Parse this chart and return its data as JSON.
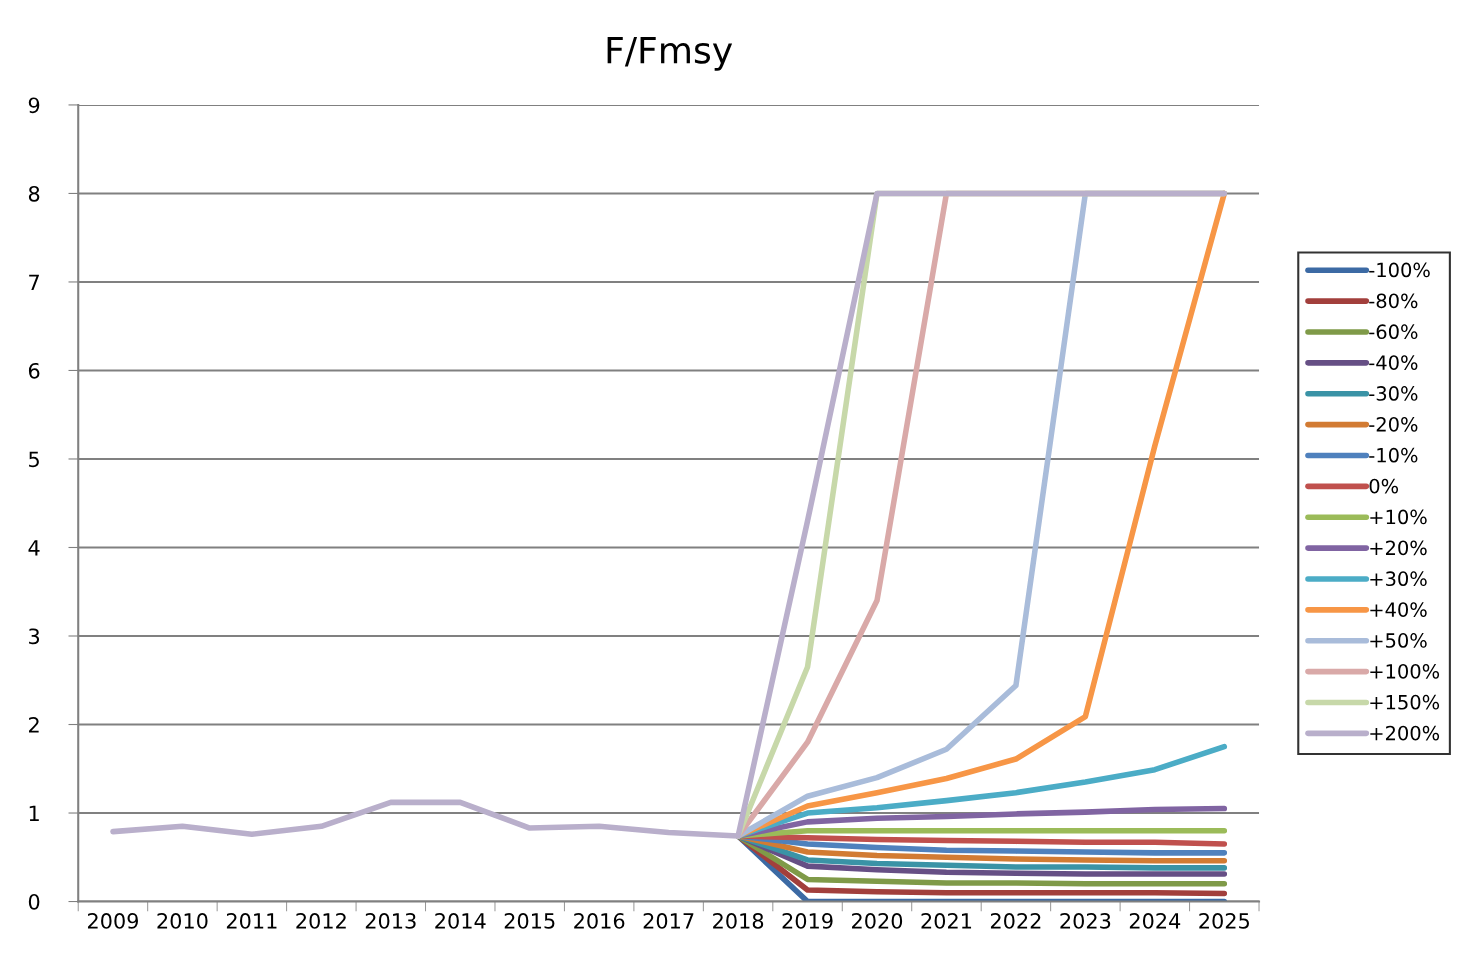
{
  "chart_data": {
    "type": "line",
    "title": "F/Fmsy",
    "categories": [
      "2009",
      "2010",
      "2011",
      "2012",
      "2013",
      "2014",
      "2015",
      "2016",
      "2017",
      "2018",
      "2019",
      "2020",
      "2021",
      "2022",
      "2023",
      "2024",
      "2025"
    ],
    "ylim": [
      0,
      9
    ],
    "yticks": [
      0,
      1,
      2,
      3,
      4,
      5,
      6,
      7,
      8,
      9
    ],
    "grid": "y",
    "legend": "right",
    "marker": "none",
    "line_style": "solid",
    "series": [
      {
        "name": "-100%",
        "color": "#3c6aa4",
        "values": [
          null,
          null,
          null,
          null,
          null,
          null,
          null,
          null,
          null,
          0.74,
          0,
          0,
          0,
          0,
          0,
          0,
          0
        ]
      },
      {
        "name": "-80%",
        "color": "#a23f3c",
        "values": [
          null,
          null,
          null,
          null,
          null,
          null,
          null,
          null,
          null,
          0.74,
          0.13,
          0.11,
          0.1,
          0.1,
          0.1,
          0.1,
          0.09
        ]
      },
      {
        "name": "-60%",
        "color": "#7f9a48",
        "values": [
          null,
          null,
          null,
          null,
          null,
          null,
          null,
          null,
          null,
          0.74,
          0.25,
          0.23,
          0.21,
          0.21,
          0.2,
          0.2,
          0.2
        ]
      },
      {
        "name": "-40%",
        "color": "#664f85",
        "values": [
          null,
          null,
          null,
          null,
          null,
          null,
          null,
          null,
          null,
          0.74,
          0.4,
          0.36,
          0.33,
          0.32,
          0.31,
          0.31,
          0.31
        ]
      },
      {
        "name": "-30%",
        "color": "#3a93a6",
        "values": [
          null,
          null,
          null,
          null,
          null,
          null,
          null,
          null,
          null,
          0.74,
          0.47,
          0.43,
          0.41,
          0.39,
          0.39,
          0.38,
          0.38
        ]
      },
      {
        "name": "-20%",
        "color": "#d27b33",
        "values": [
          null,
          null,
          null,
          null,
          null,
          null,
          null,
          null,
          null,
          0.74,
          0.56,
          0.52,
          0.5,
          0.48,
          0.47,
          0.46,
          0.46
        ]
      },
      {
        "name": "-10%",
        "color": "#4f81bd",
        "values": [
          null,
          null,
          null,
          null,
          null,
          null,
          null,
          null,
          null,
          0.74,
          0.65,
          0.61,
          0.58,
          0.57,
          0.56,
          0.55,
          0.55
        ]
      },
      {
        "name": "0%",
        "color": "#c0504d",
        "values": [
          null,
          null,
          null,
          null,
          null,
          null,
          null,
          null,
          null,
          0.74,
          0.72,
          0.7,
          0.69,
          0.68,
          0.67,
          0.67,
          0.65
        ]
      },
      {
        "name": "+10%",
        "color": "#9bbb59",
        "values": [
          null,
          null,
          null,
          null,
          null,
          null,
          null,
          null,
          null,
          0.74,
          0.8,
          0.8,
          0.8,
          0.8,
          0.8,
          0.8,
          0.8
        ]
      },
      {
        "name": "+20%",
        "color": "#8064a2",
        "values": [
          null,
          null,
          null,
          null,
          null,
          null,
          null,
          null,
          null,
          0.74,
          0.9,
          0.94,
          0.96,
          0.99,
          1.01,
          1.04,
          1.05
        ]
      },
      {
        "name": "+30%",
        "color": "#4bacc6",
        "values": [
          null,
          null,
          null,
          null,
          null,
          null,
          null,
          null,
          null,
          0.74,
          1.0,
          1.06,
          1.14,
          1.23,
          1.35,
          1.49,
          1.75
        ]
      },
      {
        "name": "+40%",
        "color": "#f79646",
        "values": [
          null,
          null,
          null,
          null,
          null,
          null,
          null,
          null,
          null,
          0.74,
          1.08,
          1.23,
          1.39,
          1.61,
          2.09,
          5.15,
          8
        ]
      },
      {
        "name": "+50%",
        "color": "#a9bcda",
        "values": [
          null,
          null,
          null,
          null,
          null,
          null,
          null,
          null,
          null,
          0.74,
          1.19,
          1.4,
          1.72,
          2.44,
          8,
          8,
          8
        ]
      },
      {
        "name": "+100%",
        "color": "#d9a9a8",
        "values": [
          null,
          null,
          null,
          null,
          null,
          null,
          null,
          null,
          null,
          0.74,
          1.8,
          3.4,
          8,
          8,
          8,
          8,
          8
        ]
      },
      {
        "name": "+150%",
        "color": "#c7d8a9",
        "values": [
          null,
          null,
          null,
          null,
          null,
          null,
          null,
          null,
          null,
          0.74,
          2.65,
          8,
          8,
          8,
          8,
          8,
          8
        ]
      },
      {
        "name": "+200%",
        "color": "#b9afcb",
        "values": [
          0.79,
          0.85,
          0.76,
          0.85,
          1.12,
          1.12,
          0.83,
          0.85,
          0.78,
          0.74,
          4.3,
          8,
          8,
          8,
          8,
          8,
          8
        ]
      }
    ]
  }
}
